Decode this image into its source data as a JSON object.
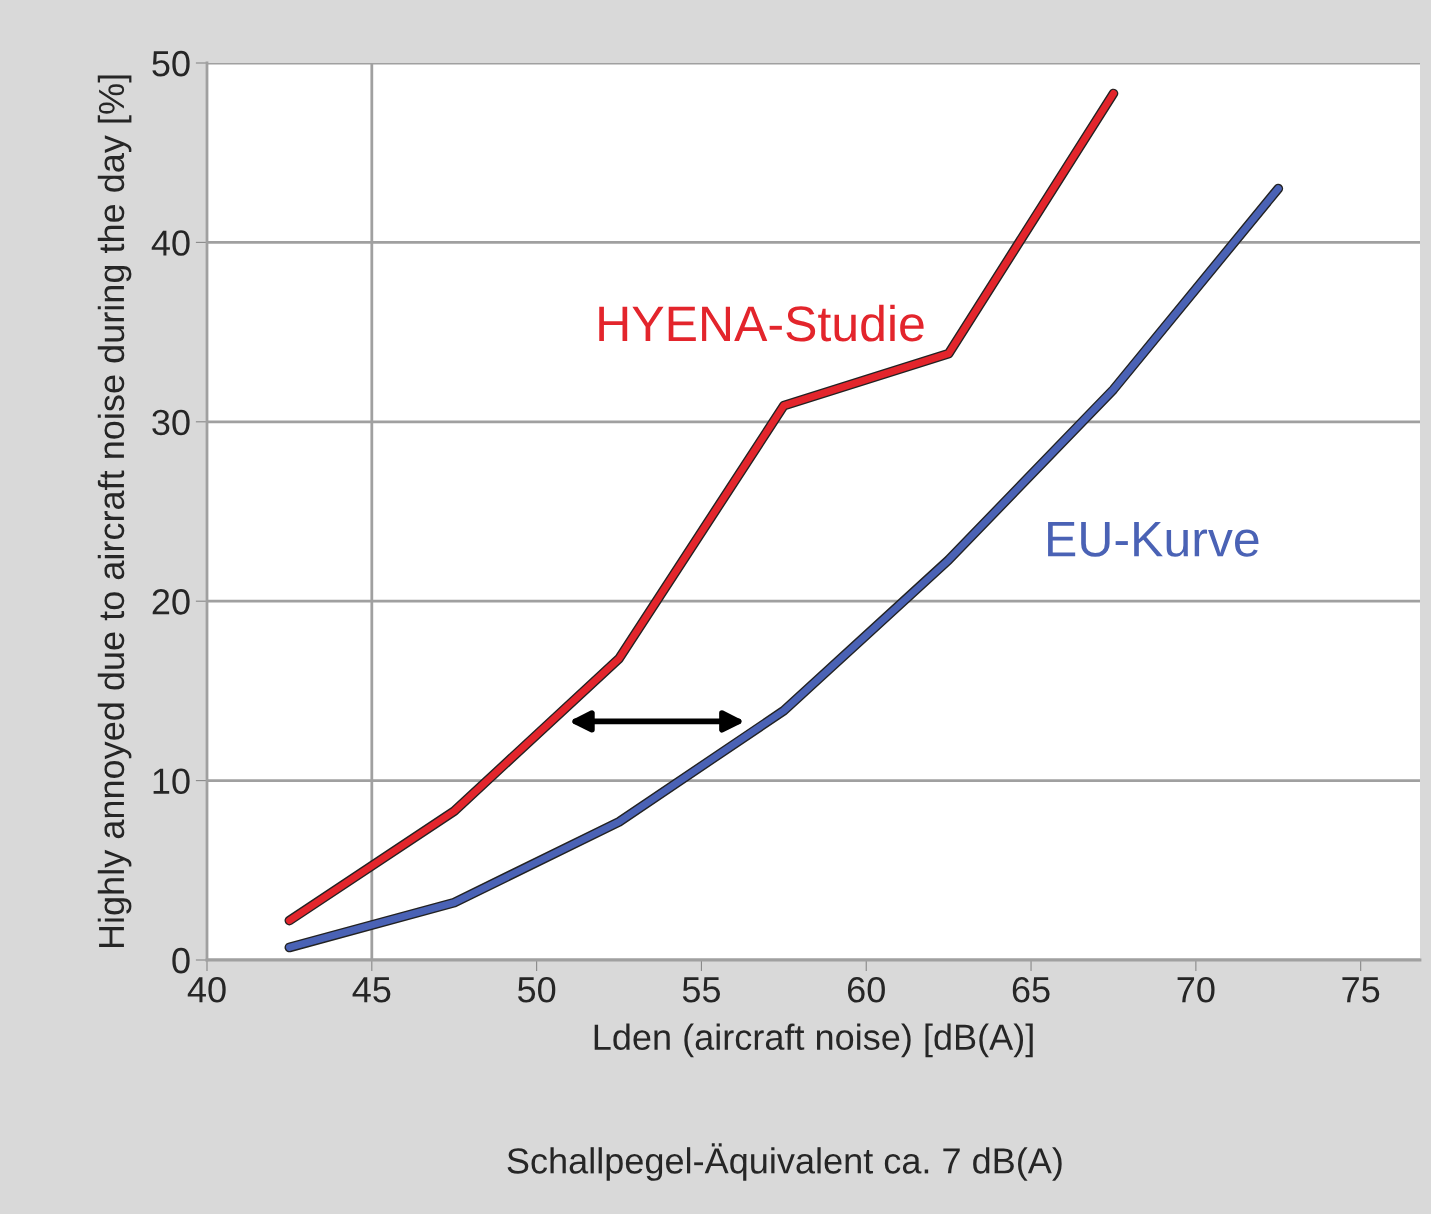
{
  "chart_data": {
    "type": "line",
    "xlabel": "Lden (aircraft noise) [dB(A)]",
    "ylabel": "Highly annoyed due to aircraft noise during the day [%]",
    "annotations": [
      "Schallpegel-Äquivalent ca. 7 dB(A)"
    ],
    "series": [
      {
        "name": "HYENA-Studie",
        "color": "#e3252c",
        "x": [
          42.5,
          47.5,
          52.5,
          57.5,
          62.5,
          67.5
        ],
        "values": [
          2.2,
          8.3,
          16.8,
          30.9,
          33.8,
          48.3
        ]
      },
      {
        "name": "EU-Kurve",
        "color": "#4a62b5",
        "x": [
          42.5,
          47.5,
          52.5,
          57.5,
          62.5,
          67.5,
          72.5
        ],
        "values": [
          0.7,
          3.2,
          7.7,
          13.9,
          22.3,
          31.8,
          43.0
        ]
      }
    ],
    "xlim": [
      40,
      76.8
    ],
    "xticks": [
      40,
      45,
      50,
      55,
      60,
      65,
      70,
      75
    ],
    "ylim": [
      0,
      50
    ],
    "yticks": [
      0,
      10,
      20,
      30,
      40,
      50
    ],
    "grid": "y",
    "ref_lines": [
      {
        "axis": "x",
        "value": 45,
        "color": "#a0a0a0"
      }
    ],
    "marker": "none",
    "line_style": "solid",
    "legend": false
  }
}
